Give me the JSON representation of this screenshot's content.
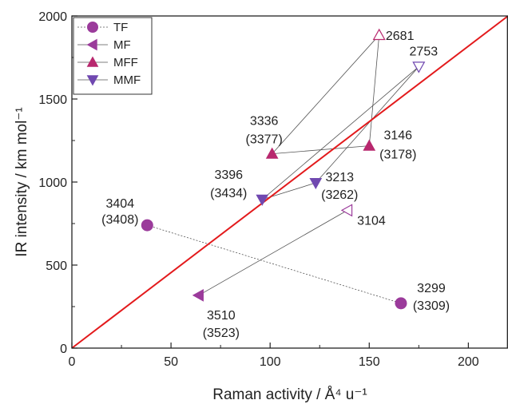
{
  "chart_data": {
    "type": "scatter",
    "xlabel": "Raman activity / Å⁴ u⁻¹",
    "ylabel": "IR intensity / km mol⁻¹",
    "xlim": [
      0,
      220
    ],
    "ylim": [
      0,
      2000
    ],
    "x_ticks": [
      0,
      50,
      100,
      150,
      200
    ],
    "y_ticks": [
      0,
      500,
      1000,
      1500,
      2000
    ],
    "grid": false,
    "legend_position": "top-left",
    "reference_line": {
      "x": [
        0,
        220
      ],
      "y": [
        0,
        2000
      ],
      "color": "#e31a1c"
    },
    "series": [
      {
        "name": "TF",
        "marker": "circle",
        "color": "#9b3b9b",
        "line_style": "dashed",
        "points": [
          {
            "x": 38,
            "y": 740,
            "filled": true,
            "label": "3404",
            "sublabel": "(3408)"
          },
          {
            "x": 166,
            "y": 270,
            "filled": true,
            "label": "3299",
            "sublabel": "(3309)"
          }
        ]
      },
      {
        "name": "MF",
        "marker": "triangle-left",
        "color": "#9b3b9b",
        "line_style": "solid",
        "points": [
          {
            "x": 64,
            "y": 318,
            "filled": true,
            "label": "3510",
            "sublabel": "(3523)"
          },
          {
            "x": 139,
            "y": 830,
            "filled": false,
            "label": "3104",
            "sublabel": ""
          }
        ]
      },
      {
        "name": "MFF",
        "marker": "triangle-up",
        "color": "#b8286e",
        "line_style": "solid",
        "points": [
          {
            "x": 101,
            "y": 1170,
            "filled": true,
            "label": "3336",
            "sublabel": "(3377)"
          },
          {
            "x": 150,
            "y": 1218,
            "filled": true,
            "label": "3146",
            "sublabel": "(3178)"
          },
          {
            "x": 155,
            "y": 1885,
            "filled": false,
            "label": "2681",
            "sublabel": ""
          }
        ]
      },
      {
        "name": "MMF",
        "marker": "triangle-down",
        "color": "#7048b0",
        "line_style": "solid",
        "points": [
          {
            "x": 96,
            "y": 895,
            "filled": true,
            "label": "3396",
            "sublabel": "(3434)"
          },
          {
            "x": 123,
            "y": 995,
            "filled": true,
            "label": "3213",
            "sublabel": "(3262)"
          },
          {
            "x": 175,
            "y": 1695,
            "filled": false,
            "label": "2753",
            "sublabel": ""
          }
        ]
      }
    ],
    "connections": [
      {
        "series": "TF",
        "from": 0,
        "to": 1
      },
      {
        "series": "MF",
        "from": 0,
        "to": 1
      },
      {
        "series": "MFF",
        "from": 0,
        "to": 1
      },
      {
        "series": "MFF",
        "from": 0,
        "to": 2
      },
      {
        "series": "MFF",
        "from": 1,
        "to": 2
      },
      {
        "series": "MMF",
        "from": 0,
        "to": 1
      },
      {
        "series": "MMF",
        "from": 0,
        "to": 2
      },
      {
        "series": "MMF",
        "from": 1,
        "to": 2
      }
    ]
  }
}
